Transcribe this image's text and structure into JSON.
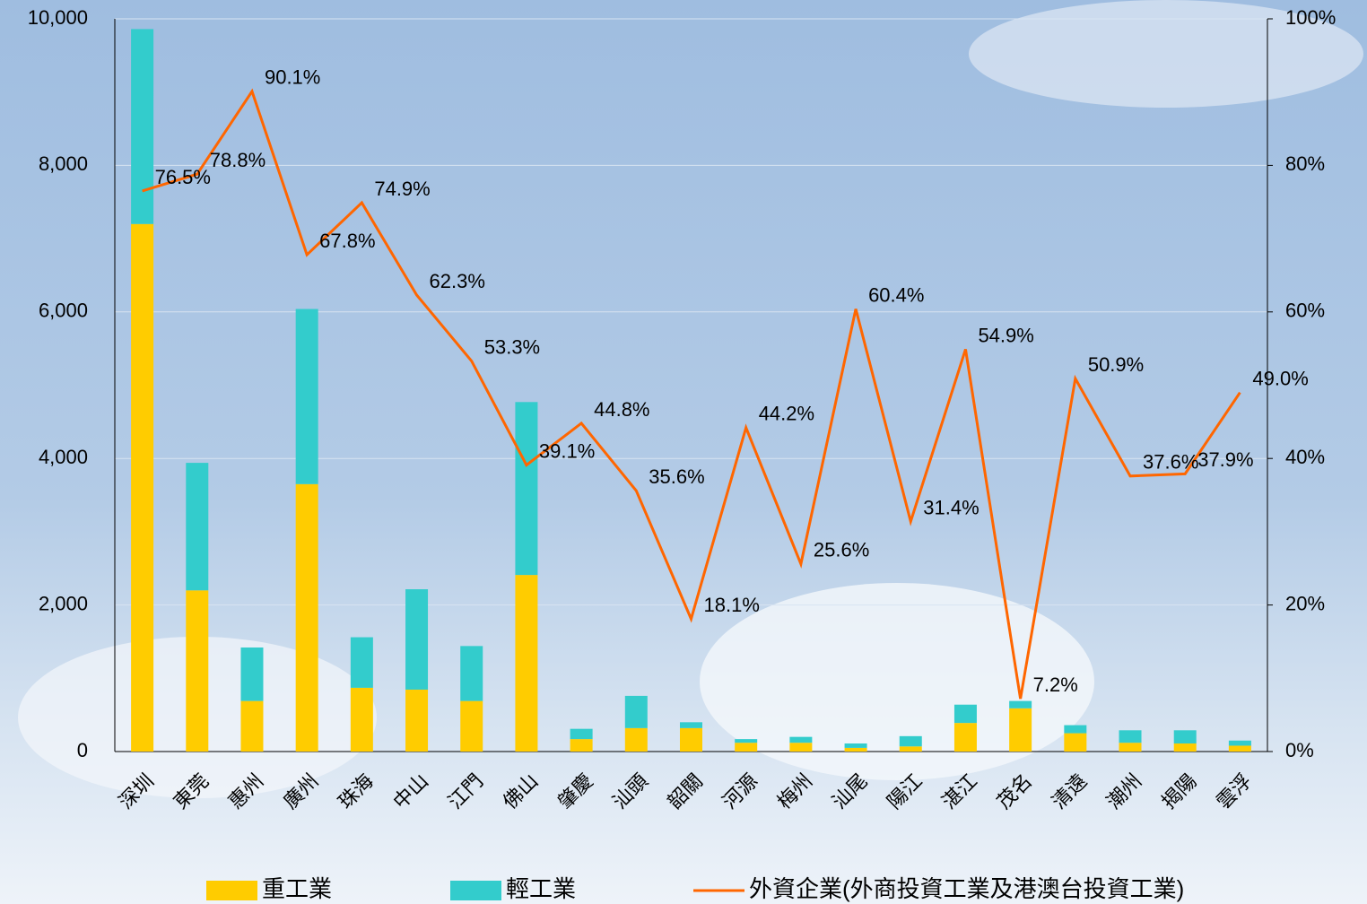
{
  "chart_data": {
    "type": "bar",
    "categories": [
      "深圳",
      "東莞",
      "惠州",
      "廣州",
      "珠海",
      "中山",
      "江門",
      "佛山",
      "肇慶",
      "汕頭",
      "韶關",
      "河源",
      "梅州",
      "汕尾",
      "陽江",
      "湛江",
      "茂名",
      "清遠",
      "潮州",
      "揭陽",
      "雲浮"
    ],
    "series": [
      {
        "name": "重工業",
        "color": "#FFCC00",
        "type": "bar",
        "values": [
          7200,
          2200,
          690,
          3650,
          870,
          845,
          690,
          2410,
          170,
          320,
          320,
          120,
          120,
          50,
          70,
          390,
          590,
          250,
          120,
          110,
          80
        ]
      },
      {
        "name": "輕工業",
        "color": "#33CCCC",
        "type": "bar",
        "values": [
          2660,
          1740,
          730,
          2390,
          690,
          1370,
          750,
          2360,
          140,
          440,
          80,
          50,
          80,
          60,
          140,
          250,
          100,
          110,
          170,
          180,
          70
        ]
      },
      {
        "name": "外資企業(外商投資工業及港澳台投資工業)",
        "color": "#FF6600",
        "type": "line",
        "axis": "y2",
        "values": [
          76.5,
          78.8,
          90.1,
          67.8,
          74.9,
          62.3,
          53.3,
          39.1,
          44.8,
          35.6,
          18.1,
          44.2,
          25.6,
          60.4,
          31.4,
          54.9,
          7.2,
          50.9,
          37.6,
          37.9,
          49.0
        ],
        "value_labels": [
          "76.5%",
          "78.8%",
          "90.1%",
          "67.8%",
          "74.9%",
          "62.3%",
          "53.3%",
          "39.1%",
          "44.8%",
          "35.6%",
          "18.1%",
          "44.2%",
          "25.6%",
          "60.4%",
          "31.4%",
          "54.9%",
          "7.2%",
          "50.9%",
          "37.6%",
          "37.9%",
          "49.0%"
        ]
      }
    ],
    "ylim": [
      0,
      10000
    ],
    "yticks": [
      0,
      {
        "value": 2000,
        "label": "2,000"
      },
      {
        "value": 4000,
        "label": "4,000"
      },
      {
        "value": 6000,
        "label": "6,000"
      },
      {
        "value": 8000,
        "label": "8,000"
      },
      {
        "value": 10000,
        "label": "10,000"
      }
    ],
    "y2lim": [
      0,
      100
    ],
    "y2ticks": [
      {
        "value": 0,
        "label": "0%"
      },
      {
        "value": 20,
        "label": "20%"
      },
      {
        "value": 40,
        "label": "40%"
      },
      {
        "value": 60,
        "label": "60%"
      },
      {
        "value": 80,
        "label": "80%"
      },
      {
        "value": 100,
        "label": "100%"
      }
    ],
    "grid": true
  }
}
